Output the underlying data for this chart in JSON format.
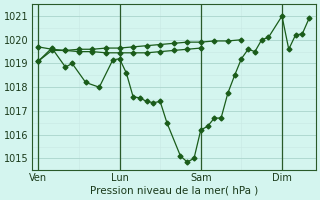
{
  "xlabel": "Pression niveau de la mer( hPa )",
  "bg_color": "#d4f5ef",
  "line_color": "#1a5c1a",
  "grid_major_color": "#aad4cc",
  "grid_minor_color": "#c8e8e4",
  "ylim": [
    1014.5,
    1021.5
  ],
  "yticks": [
    1015,
    1016,
    1017,
    1018,
    1019,
    1020,
    1021
  ],
  "day_positions": [
    0,
    24,
    48,
    72
  ],
  "day_labels": [
    "Ven",
    "Lun",
    "Sam",
    "Dim"
  ],
  "xlim": [
    -2,
    82
  ],
  "series_flat_x": [
    0,
    4,
    8,
    12,
    16,
    20,
    24,
    28,
    32,
    36,
    40,
    44,
    48,
    52,
    56,
    60
  ],
  "series_flat_y": [
    1019.1,
    1019.55,
    1019.55,
    1019.6,
    1019.6,
    1019.65,
    1019.65,
    1019.7,
    1019.75,
    1019.8,
    1019.85,
    1019.9,
    1019.9,
    1019.95,
    1019.95,
    1020.0
  ],
  "series_flat2_x": [
    0,
    4,
    8,
    12,
    16,
    20,
    24,
    28,
    32,
    36,
    40,
    44,
    48
  ],
  "series_flat2_y": [
    1019.7,
    1019.6,
    1019.55,
    1019.5,
    1019.5,
    1019.45,
    1019.45,
    1019.45,
    1019.45,
    1019.5,
    1019.55,
    1019.6,
    1019.65
  ],
  "series_dip_x": [
    0,
    4,
    8,
    10,
    14,
    18,
    22,
    24,
    26,
    28,
    30,
    32,
    34,
    36,
    38,
    42,
    44,
    46,
    48,
    50,
    52,
    54,
    56,
    58,
    60,
    62,
    64,
    66,
    68,
    72,
    74,
    76,
    78,
    80
  ],
  "series_dip_y": [
    1019.1,
    1019.65,
    1018.85,
    1019.0,
    1018.2,
    1018.0,
    1019.15,
    1019.2,
    1018.6,
    1017.6,
    1017.55,
    1017.4,
    1017.35,
    1017.4,
    1016.5,
    1015.1,
    1014.85,
    1015.0,
    1016.2,
    1016.35,
    1016.7,
    1016.7,
    1017.75,
    1018.5,
    1019.2,
    1019.6,
    1019.5,
    1020.0,
    1020.1,
    1021.0,
    1019.6,
    1020.2,
    1020.25,
    1020.9
  ]
}
